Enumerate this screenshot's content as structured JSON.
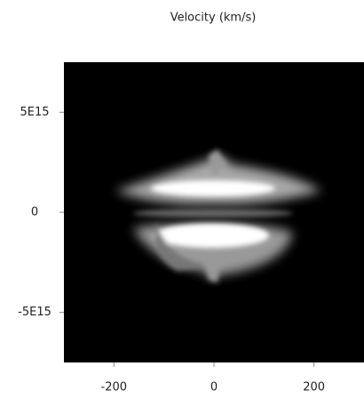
{
  "chart_data": {
    "type": "image",
    "title": "Velocity (km/s)",
    "xlim": [
      -300,
      300
    ],
    "xticks": [
      -200,
      0,
      200
    ],
    "ylim": [
      -7500000000000000.0,
      7500000000000000.0
    ],
    "yticks": [
      {
        "value": 5000000000000000.0,
        "label": "5E15"
      },
      0,
      {
        "value": -5000000000000000.0,
        "label": "-5E15"
      }
    ]
  }
}
